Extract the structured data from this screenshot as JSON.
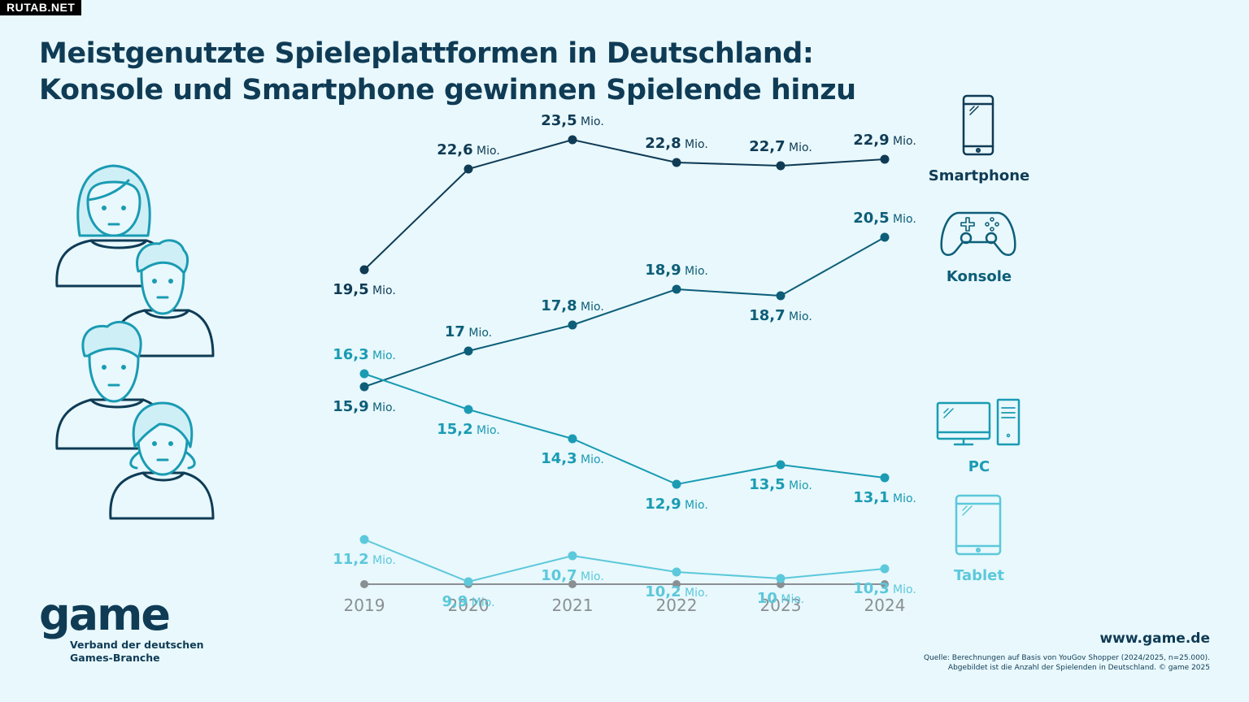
{
  "watermark": "RUTAB.NET",
  "title_line1": "Meistgenutzte Spieleplattformen in Deutschland:",
  "title_line2": "Konsole und Smartphone gewinnen Spielende hinzu",
  "logo": {
    "word": "game",
    "sub_line1": "Verband der deutschen",
    "sub_line2": "Games-Branche"
  },
  "website": "www.game.de",
  "source_line1": "Quelle: Berechnungen auf Basis von YouGov Shopper (2024/2025, n=25.000).",
  "source_line2": "Abgebildet ist die Anzahl der Spielenden in Deutschland. © game 2025",
  "colors": {
    "smartphone": "#0f3b55",
    "konsole": "#0d5e78",
    "pc": "#1a9bb3",
    "tablet": "#5cc8db",
    "axis": "#8a8f93",
    "background": "#e8f8fc"
  },
  "icons": [
    "people-illustration",
    "smartphone-icon",
    "gamepad-icon",
    "pc-icon",
    "tablet-icon"
  ],
  "chart_data": {
    "type": "line",
    "title": "Meistgenutzte Spieleplattformen in Deutschland: Konsole und Smartphone gewinnen Spielende hinzu",
    "x": [
      "2019",
      "2020",
      "2021",
      "2022",
      "2023",
      "2024"
    ],
    "unit": "Mio.",
    "grid": false,
    "legend_position": "right",
    "series": [
      {
        "name": "Smartphone",
        "values": [
          19.5,
          22.6,
          23.5,
          22.8,
          22.7,
          22.9
        ],
        "labels": [
          "19,5",
          "22,6",
          "23,5",
          "22,8",
          "22,7",
          "22,9"
        ],
        "color": "#0f3b55"
      },
      {
        "name": "Konsole",
        "values": [
          15.9,
          17,
          17.8,
          18.9,
          18.7,
          20.5
        ],
        "labels": [
          "15,9",
          "17",
          "17,8",
          "18,9",
          "18,7",
          "20,5"
        ],
        "color": "#0d5e78"
      },
      {
        "name": "PC",
        "values": [
          16.3,
          15.2,
          14.3,
          12.9,
          13.5,
          13.1
        ],
        "labels": [
          "16,3",
          "15,2",
          "14,3",
          "12,9",
          "13,5",
          "13,1"
        ],
        "color": "#1a9bb3"
      },
      {
        "name": "Tablet",
        "values": [
          11.2,
          9.9,
          10.7,
          10.2,
          10,
          10.3
        ],
        "labels": [
          "11,2",
          "9,9",
          "10,7",
          "10,2",
          "10",
          "10,3"
        ],
        "color": "#5cc8db"
      }
    ]
  }
}
